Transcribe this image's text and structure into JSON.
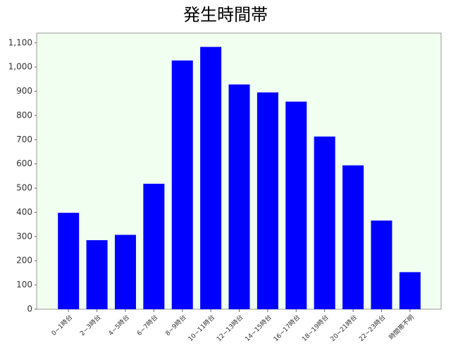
{
  "chart_data": {
    "type": "bar",
    "title": "発生時間帯",
    "categories": [
      "0~1時台",
      "2~3時台",
      "4~5時台",
      "6~7時台",
      "8~9時台",
      "10~11時台",
      "12~13時台",
      "14~15時台",
      "16~17時台",
      "18~19時台",
      "20~21時台",
      "22~23時台",
      "時間帯不明"
    ],
    "values": [
      398,
      285,
      307,
      518,
      1027,
      1083,
      928,
      895,
      857,
      713,
      594,
      366,
      153
    ],
    "color": "#0000ff",
    "ylim": [
      0,
      1140
    ],
    "yticks": [
      0,
      100,
      200,
      300,
      400,
      500,
      600,
      700,
      800,
      900,
      {
        "value": 1000,
        "label": "1,000"
      },
      {
        "value": 1100,
        "label": "1,100"
      }
    ],
    "grid": false
  }
}
